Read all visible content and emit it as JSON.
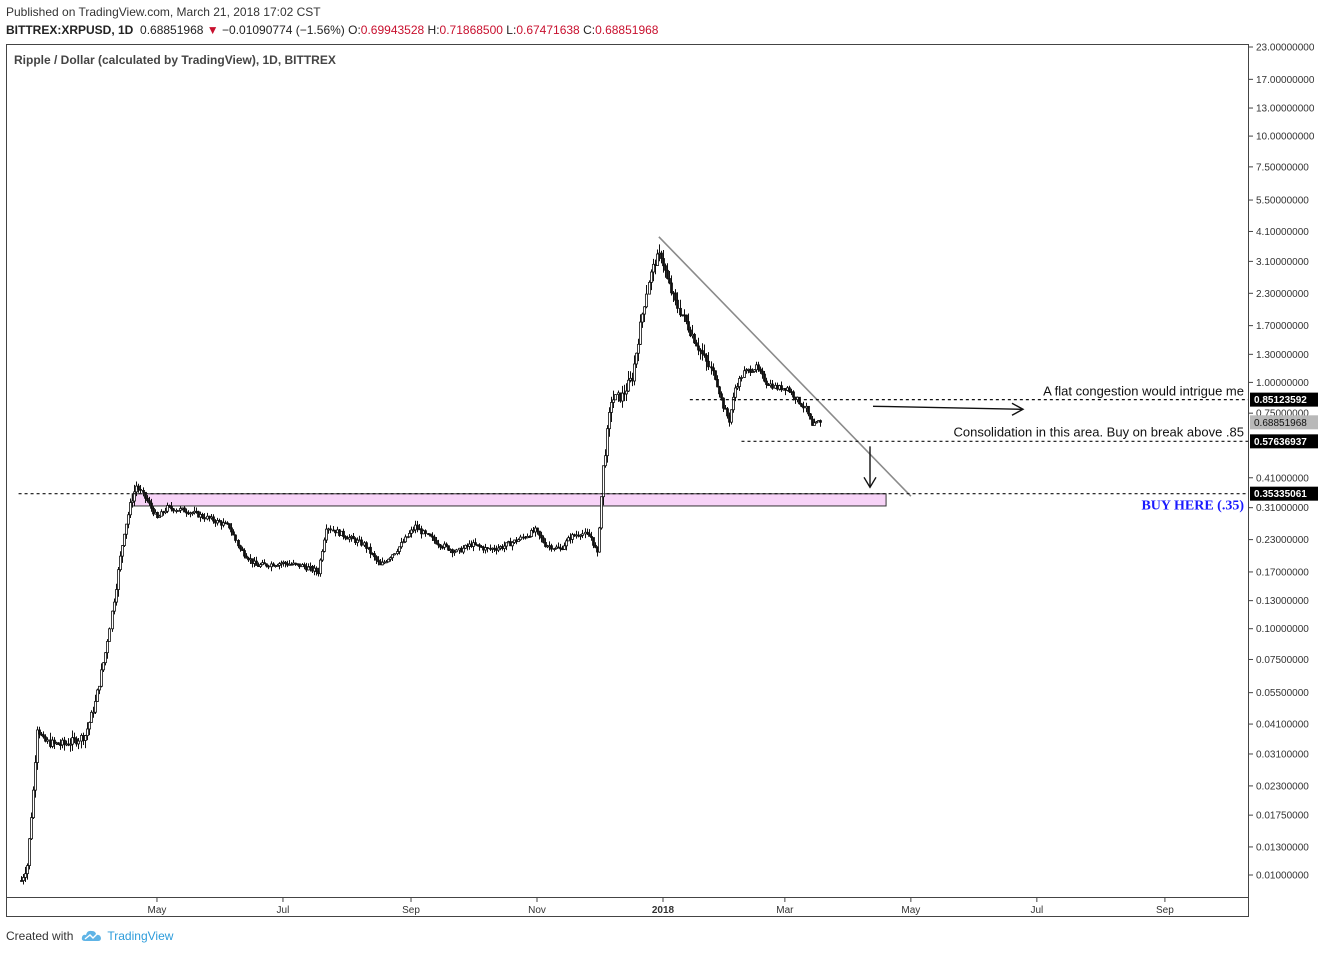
{
  "header": {
    "published": "Published on TradingView.com, March 21, 2018 17:02 CST",
    "symbol": "BITTREX:XRPUSD, 1D",
    "last": "0.68851968",
    "change": "−0.01090774 (−1.56%)",
    "o_label": "O:",
    "open": "0.69943528",
    "h_label": "H:",
    "high": "0.71868500",
    "l_label": "L:",
    "low": "0.67471638",
    "c_label": "C:",
    "close": "0.68851968",
    "down_arrow": "▼"
  },
  "footer": {
    "created_with": "Created with",
    "brand": "TradingView"
  },
  "colors": {
    "up_down_red": "#c8102e",
    "buy_zone_fill": "#f7d3f7",
    "buy_text": "#1a1aff",
    "trend_line": "#8a8a8a"
  },
  "chart_data": {
    "type": "candlestick",
    "title": "Ripple / Dollar (calculated by TradingView), 1D, BITTREX",
    "y_scale": "log",
    "y_ticks": [
      {
        "value": 23,
        "label": "23.00000000"
      },
      {
        "value": 17,
        "label": "17.00000000"
      },
      {
        "value": 13,
        "label": "13.00000000"
      },
      {
        "value": 10,
        "label": "10.00000000"
      },
      {
        "value": 7.5,
        "label": "7.50000000"
      },
      {
        "value": 5.5,
        "label": "5.50000000"
      },
      {
        "value": 4.1,
        "label": "4.10000000"
      },
      {
        "value": 3.1,
        "label": "3.10000000"
      },
      {
        "value": 2.3,
        "label": "2.30000000"
      },
      {
        "value": 1.7,
        "label": "1.70000000"
      },
      {
        "value": 1.3,
        "label": "1.30000000"
      },
      {
        "value": 1.0,
        "label": "1.00000000"
      },
      {
        "value": 0.75,
        "label": "0.75000000"
      },
      {
        "value": 0.41,
        "label": "0.41000000"
      },
      {
        "value": 0.31,
        "label": "0.31000000"
      },
      {
        "value": 0.23,
        "label": "0.23000000"
      },
      {
        "value": 0.17,
        "label": "0.17000000"
      },
      {
        "value": 0.13,
        "label": "0.13000000"
      },
      {
        "value": 0.1,
        "label": "0.10000000"
      },
      {
        "value": 0.075,
        "label": "0.07500000"
      },
      {
        "value": 0.055,
        "label": "0.05500000"
      },
      {
        "value": 0.041,
        "label": "0.04100000"
      },
      {
        "value": 0.031,
        "label": "0.03100000"
      },
      {
        "value": 0.023,
        "label": "0.02300000"
      },
      {
        "value": 0.0175,
        "label": "0.01750000"
      },
      {
        "value": 0.013,
        "label": "0.01300000"
      },
      {
        "value": 0.01,
        "label": "0.01000000"
      }
    ],
    "x_ticks": [
      {
        "day": 30,
        "label": "May"
      },
      {
        "day": 91,
        "label": "Jul"
      },
      {
        "day": 153,
        "label": "Sep"
      },
      {
        "day": 214,
        "label": "Nov"
      },
      {
        "day": 275,
        "label": "2018"
      },
      {
        "day": 334,
        "label": "Mar"
      },
      {
        "day": 395,
        "label": "May"
      },
      {
        "day": 456,
        "label": "Jul"
      },
      {
        "day": 518,
        "label": "Sep"
      }
    ],
    "x_range_days": [
      -37,
      540
    ],
    "series_anchors": [
      [
        -36,
        0.0095
      ],
      [
        -33,
        0.011
      ],
      [
        -30,
        0.022
      ],
      [
        -28,
        0.04
      ],
      [
        -25,
        0.035
      ],
      [
        -20,
        0.034
      ],
      [
        -15,
        0.034
      ],
      [
        -10,
        0.035
      ],
      [
        -5,
        0.037
      ],
      [
        0,
        0.05
      ],
      [
        5,
        0.08
      ],
      [
        10,
        0.15
      ],
      [
        14,
        0.25
      ],
      [
        18,
        0.34
      ],
      [
        20,
        0.38
      ],
      [
        25,
        0.33
      ],
      [
        30,
        0.28
      ],
      [
        35,
        0.31
      ],
      [
        45,
        0.3
      ],
      [
        55,
        0.28
      ],
      [
        65,
        0.26
      ],
      [
        70,
        0.21
      ],
      [
        78,
        0.18
      ],
      [
        90,
        0.185
      ],
      [
        100,
        0.18
      ],
      [
        108,
        0.17
      ],
      [
        112,
        0.26
      ],
      [
        120,
        0.24
      ],
      [
        130,
        0.22
      ],
      [
        138,
        0.18
      ],
      [
        145,
        0.205
      ],
      [
        155,
        0.26
      ],
      [
        160,
        0.24
      ],
      [
        167,
        0.22
      ],
      [
        175,
        0.205
      ],
      [
        182,
        0.22
      ],
      [
        190,
        0.21
      ],
      [
        197,
        0.215
      ],
      [
        205,
        0.23
      ],
      [
        213,
        0.25
      ],
      [
        218,
        0.22
      ],
      [
        225,
        0.21
      ],
      [
        230,
        0.235
      ],
      [
        235,
        0.245
      ],
      [
        240,
        0.235
      ],
      [
        243,
        0.2
      ],
      [
        246,
        0.45
      ],
      [
        250,
        0.85
      ],
      [
        255,
        0.88
      ],
      [
        260,
        1.05
      ],
      [
        265,
        1.9
      ],
      [
        268,
        2.6
      ],
      [
        271,
        3.1
      ],
      [
        274,
        3.3
      ],
      [
        277,
        2.6
      ],
      [
        281,
        2.1
      ],
      [
        286,
        1.75
      ],
      [
        291,
        1.45
      ],
      [
        296,
        1.2
      ],
      [
        300,
        1.05
      ],
      [
        304,
        0.8
      ],
      [
        307,
        0.7
      ],
      [
        310,
        0.95
      ],
      [
        314,
        1.1
      ],
      [
        320,
        1.15
      ],
      [
        325,
        1.0
      ],
      [
        330,
        0.95
      ],
      [
        335,
        0.95
      ],
      [
        340,
        0.85
      ],
      [
        344,
        0.78
      ],
      [
        347,
        0.66
      ],
      [
        350,
        0.69
      ],
      [
        351,
        0.6885
      ]
    ],
    "annotations": {
      "trend_line": {
        "from": {
          "day": 273,
          "value": 3.9
        },
        "to": {
          "day": 395,
          "value": 0.345
        }
      },
      "lines": [
        {
          "value": 0.85123592,
          "label": "0.85123592",
          "from_day": 288,
          "note": "A flat congestion would intrigue me"
        },
        {
          "value": 0.57636937,
          "label": "0.57636937",
          "from_day": 313,
          "note": "Consolidation in this area. Buy on break above .85"
        },
        {
          "value": 0.35335061,
          "label": "0.35335061",
          "from_day": -37,
          "note": "BUY HERE (.35)"
        }
      ],
      "last_price": {
        "value": 0.68851968,
        "label": "0.68851968"
      },
      "buy_zone": {
        "from_day": 18,
        "to_day": 383,
        "low": 0.315,
        "high": 0.353
      }
    }
  }
}
